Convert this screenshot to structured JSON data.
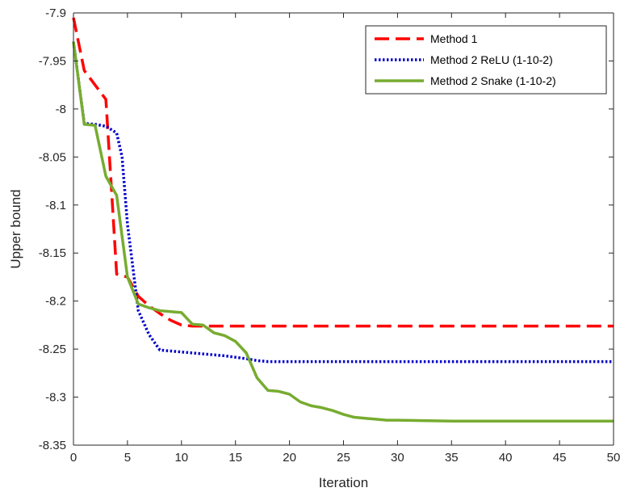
{
  "chart_data": {
    "type": "line",
    "title": "",
    "xlabel": "Iteration",
    "ylabel": "Upper bound",
    "xlim": [
      0,
      50
    ],
    "ylim": [
      -8.35,
      -7.9
    ],
    "xticks": [
      0,
      5,
      10,
      15,
      20,
      25,
      30,
      35,
      40,
      45,
      50
    ],
    "yticks": [
      -7.9,
      -7.95,
      -8,
      -8.05,
      -8.1,
      -8.15,
      -8.2,
      -8.25,
      -8.3,
      -8.35
    ],
    "xtick_labels": [
      "0",
      "5",
      "10",
      "15",
      "20",
      "25",
      "30",
      "35",
      "40",
      "45",
      "50"
    ],
    "ytick_labels": [
      "-7.9",
      "-7.95",
      "-8",
      "-8.05",
      "-8.1",
      "-8.15",
      "-8.2",
      "-8.25",
      "-8.3",
      "-8.35"
    ],
    "grid": false,
    "legend_position": "top-right",
    "series": [
      {
        "name": "Method 1",
        "color": "#ff0000",
        "style": "dashed",
        "x": [
          0,
          1,
          2,
          3,
          3.5,
          4,
          5,
          6,
          7,
          8,
          9,
          10,
          11,
          12,
          13,
          14,
          15,
          16,
          17,
          18,
          19,
          20,
          25,
          30,
          35,
          40,
          45,
          50
        ],
        "y": [
          -7.905,
          -7.96,
          -7.975,
          -7.99,
          -8.08,
          -8.172,
          -8.175,
          -8.195,
          -8.205,
          -8.213,
          -8.22,
          -8.225,
          -8.226,
          -8.226,
          -8.226,
          -8.226,
          -8.226,
          -8.226,
          -8.226,
          -8.226,
          -8.226,
          -8.226,
          -8.226,
          -8.226,
          -8.226,
          -8.226,
          -8.226,
          -8.226
        ]
      },
      {
        "name": "Method 2 ReLU (1-10-2)",
        "color": "#0000cc",
        "style": "dotted",
        "x": [
          0,
          1,
          2,
          3,
          4,
          4.5,
          5,
          6,
          7,
          8,
          10,
          12,
          14,
          16,
          17,
          18,
          20,
          25,
          30,
          35,
          40,
          45,
          50
        ],
        "y": [
          -7.93,
          -8.015,
          -8.016,
          -8.018,
          -8.025,
          -8.05,
          -8.12,
          -8.21,
          -8.235,
          -8.251,
          -8.253,
          -8.255,
          -8.257,
          -8.26,
          -8.262,
          -8.263,
          -8.263,
          -8.263,
          -8.263,
          -8.263,
          -8.263,
          -8.263,
          -8.263
        ]
      },
      {
        "name": "Method 2 Snake (1-10-2)",
        "color": "#77ac30",
        "style": "solid",
        "x": [
          0,
          1,
          2,
          3,
          4,
          5,
          6,
          7,
          8,
          9,
          10,
          11,
          12,
          13,
          14,
          15,
          16,
          17,
          18,
          19,
          20,
          21,
          22,
          23,
          24,
          25,
          26,
          27,
          28,
          29,
          30,
          35,
          40,
          45,
          50
        ],
        "y": [
          -7.93,
          -8.016,
          -8.017,
          -8.07,
          -8.09,
          -8.175,
          -8.203,
          -8.207,
          -8.21,
          -8.211,
          -8.212,
          -8.224,
          -8.225,
          -8.233,
          -8.236,
          -8.242,
          -8.254,
          -8.28,
          -8.293,
          -8.294,
          -8.297,
          -8.305,
          -8.309,
          -8.311,
          -8.314,
          -8.318,
          -8.321,
          -8.322,
          -8.323,
          -8.324,
          -8.324,
          -8.325,
          -8.325,
          -8.325,
          -8.325
        ]
      }
    ]
  }
}
